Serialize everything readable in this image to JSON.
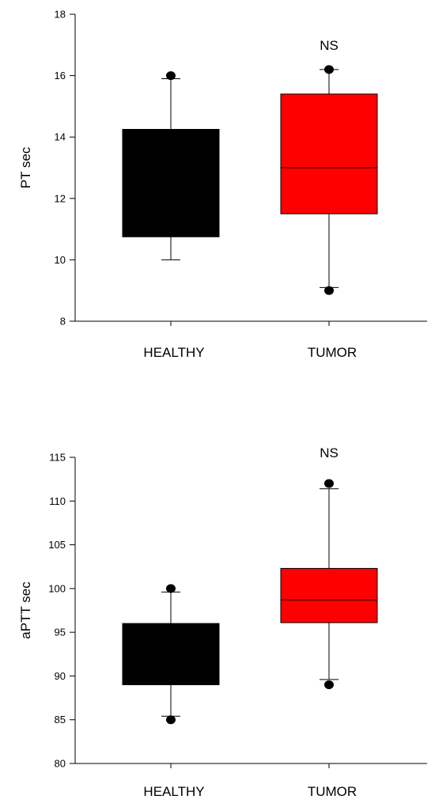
{
  "chart_data": [
    {
      "type": "box",
      "ylabel": "PT sec",
      "ylim": [
        8,
        18
      ],
      "yticks": [
        8,
        10,
        12,
        14,
        16,
        18
      ],
      "categories": [
        "HEALTHY",
        "TUMOR"
      ],
      "annotation": "NS",
      "boxes": [
        {
          "category": "HEALTHY",
          "color": "#000000",
          "whisker_low": 10.0,
          "q1": 10.75,
          "median": null,
          "q3": 14.25,
          "whisker_high": 15.9,
          "outliers": [
            16.0
          ]
        },
        {
          "category": "TUMOR",
          "color": "#ff0000",
          "whisker_low": 9.1,
          "q1": 11.5,
          "median": 13.0,
          "q3": 15.4,
          "whisker_high": 16.2,
          "outliers": [
            9.0,
            16.2
          ]
        }
      ]
    },
    {
      "type": "box",
      "ylabel": "aPTT sec",
      "ylim": [
        80,
        115
      ],
      "yticks": [
        80,
        85,
        90,
        95,
        100,
        105,
        110,
        115
      ],
      "categories": [
        "HEALTHY",
        "TUMOR"
      ],
      "annotation": "NS",
      "boxes": [
        {
          "category": "HEALTHY",
          "color": "#000000",
          "whisker_low": 85.4,
          "q1": 89.0,
          "median": null,
          "q3": 96.0,
          "whisker_high": 99.6,
          "outliers": [
            85.0,
            100.0
          ]
        },
        {
          "category": "TUMOR",
          "color": "#ff0000",
          "whisker_low": 89.6,
          "q1": 96.1,
          "median": 98.7,
          "q3": 102.3,
          "whisker_high": 111.4,
          "outliers": [
            89.0,
            112.0
          ]
        }
      ]
    }
  ]
}
